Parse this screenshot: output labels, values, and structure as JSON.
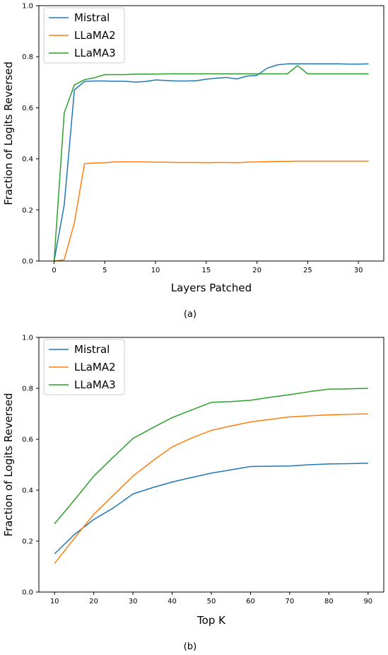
{
  "chart_data": [
    {
      "type": "line",
      "caption": "(a)",
      "xlabel": "Layers Patched",
      "ylabel": "Fraction of Logits Reversed",
      "xlim": [
        -1.5,
        32.5
      ],
      "ylim": [
        0,
        1.0
      ],
      "xticks": [
        0,
        5,
        10,
        15,
        20,
        25,
        30
      ],
      "yticks": [
        0.0,
        0.2,
        0.4,
        0.6,
        0.8,
        1.0
      ],
      "grid": false,
      "legend": "top-left",
      "x": [
        0,
        1,
        2,
        3,
        4,
        5,
        6,
        7,
        8,
        9,
        10,
        11,
        12,
        13,
        14,
        15,
        16,
        17,
        18,
        19,
        20,
        21,
        22,
        23,
        24,
        25,
        26,
        27,
        28,
        29,
        30,
        31
      ],
      "series": [
        {
          "name": "Mistral",
          "color": "#1f77b4",
          "values": [
            0.0,
            0.22,
            0.67,
            0.703,
            0.705,
            0.705,
            0.704,
            0.704,
            0.701,
            0.703,
            0.709,
            0.707,
            0.705,
            0.705,
            0.706,
            0.712,
            0.716,
            0.719,
            0.713,
            0.724,
            0.727,
            0.755,
            0.768,
            0.772,
            0.772,
            0.772,
            0.772,
            0.772,
            0.772,
            0.771,
            0.771,
            0.772
          ]
        },
        {
          "name": "LLaMA2",
          "color": "#ff7f0e",
          "values": [
            0.0,
            0.005,
            0.15,
            0.381,
            0.384,
            0.385,
            0.388,
            0.388,
            0.388,
            0.388,
            0.387,
            0.387,
            0.386,
            0.386,
            0.386,
            0.385,
            0.386,
            0.386,
            0.385,
            0.387,
            0.388,
            0.389,
            0.39,
            0.39,
            0.391,
            0.391,
            0.391,
            0.391,
            0.391,
            0.391,
            0.391,
            0.391
          ]
        },
        {
          "name": "LLaMA3",
          "color": "#2ca02c",
          "values": [
            0.0,
            0.58,
            0.69,
            0.71,
            0.718,
            0.73,
            0.73,
            0.73,
            0.732,
            0.732,
            0.732,
            0.733,
            0.733,
            0.733,
            0.733,
            0.733,
            0.733,
            0.733,
            0.733,
            0.733,
            0.733,
            0.733,
            0.733,
            0.733,
            0.765,
            0.733,
            0.733,
            0.733,
            0.733,
            0.733,
            0.733,
            0.733
          ]
        }
      ]
    },
    {
      "type": "line",
      "caption": "(b)",
      "xlabel": "Top K",
      "ylabel": "Fraction of Logits Reversed",
      "xlim": [
        6,
        94
      ],
      "ylim": [
        0,
        1.0
      ],
      "xticks": [
        10,
        20,
        30,
        40,
        50,
        60,
        70,
        80,
        90
      ],
      "yticks": [
        0.0,
        0.2,
        0.4,
        0.6,
        0.8,
        1.0
      ],
      "grid": false,
      "legend": "top-left",
      "x": [
        10,
        15,
        20,
        25,
        30,
        35,
        40,
        45,
        50,
        55,
        60,
        65,
        70,
        75,
        80,
        85,
        90
      ],
      "series": [
        {
          "name": "Mistral",
          "color": "#1f77b4",
          "values": [
            0.15,
            0.225,
            0.285,
            0.33,
            0.385,
            0.41,
            0.432,
            0.45,
            0.467,
            0.48,
            0.493,
            0.494,
            0.495,
            0.5,
            0.503,
            0.504,
            0.506
          ]
        },
        {
          "name": "LLaMA2",
          "color": "#ff7f0e",
          "values": [
            0.112,
            0.21,
            0.305,
            0.38,
            0.455,
            0.515,
            0.57,
            0.605,
            0.635,
            0.652,
            0.668,
            0.678,
            0.688,
            0.692,
            0.696,
            0.698,
            0.7
          ]
        },
        {
          "name": "LLaMA3",
          "color": "#2ca02c",
          "values": [
            0.268,
            0.36,
            0.455,
            0.53,
            0.603,
            0.645,
            0.685,
            0.715,
            0.745,
            0.748,
            0.753,
            0.765,
            0.775,
            0.787,
            0.797,
            0.798,
            0.8
          ]
        }
      ]
    }
  ]
}
